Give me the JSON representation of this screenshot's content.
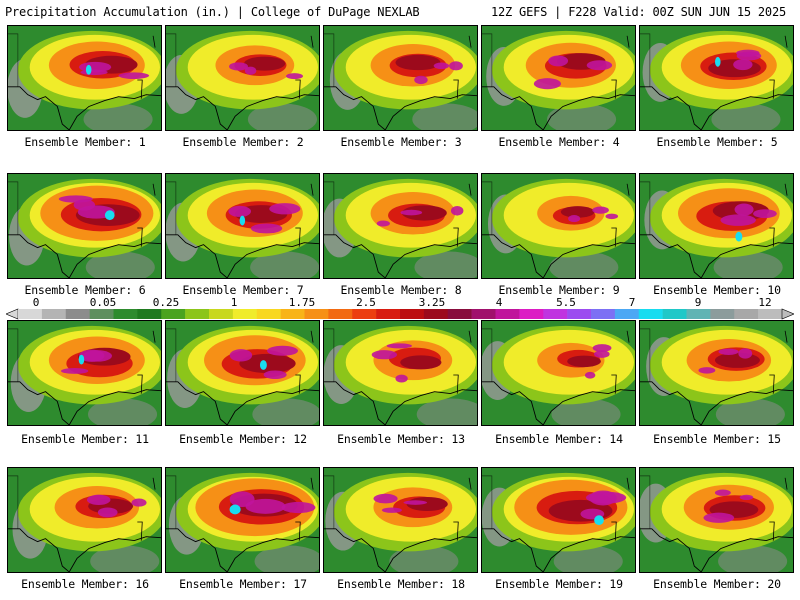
{
  "header": {
    "left": "Precipitation Accumulation (in.) | College of DuPage NEXLAB",
    "right": "12Z GEFS | F228 Valid: 00Z SUN JUN 15 2025"
  },
  "members": [
    {
      "label": "Ensemble Member: 1",
      "intensity": 0.7
    },
    {
      "label": "Ensemble Member: 2",
      "intensity": 0.55
    },
    {
      "label": "Ensemble Member: 3",
      "intensity": 0.6
    },
    {
      "label": "Ensemble Member: 4",
      "intensity": 0.65
    },
    {
      "label": "Ensemble Member: 5",
      "intensity": 0.7
    },
    {
      "label": "Ensemble Member: 6",
      "intensity": 0.85
    },
    {
      "label": "Ensemble Member: 7",
      "intensity": 0.7
    },
    {
      "label": "Ensemble Member: 8",
      "intensity": 0.6
    },
    {
      "label": "Ensemble Member: 9",
      "intensity": 0.45
    },
    {
      "label": "Ensemble Member: 10",
      "intensity": 0.75
    },
    {
      "label": "Ensemble Member: 11",
      "intensity": 0.7
    },
    {
      "label": "Ensemble Member: 12",
      "intensity": 0.75
    },
    {
      "label": "Ensemble Member: 13",
      "intensity": 0.55
    },
    {
      "label": "Ensemble Member: 14",
      "intensity": 0.45
    },
    {
      "label": "Ensemble Member: 15",
      "intensity": 0.6
    },
    {
      "label": "Ensemble Member: 16",
      "intensity": 0.6
    },
    {
      "label": "Ensemble Member: 17",
      "intensity": 0.9
    },
    {
      "label": "Ensemble Member: 18",
      "intensity": 0.55
    },
    {
      "label": "Ensemble Member: 19",
      "intensity": 0.85
    },
    {
      "label": "Ensemble Member: 20",
      "intensity": 0.65
    }
  ],
  "colorbar": {
    "ticks": [
      "0",
      "0.05",
      "0.25",
      "1",
      "1.75",
      "2.5",
      "3.25",
      "4",
      "5.5",
      "7",
      "9",
      "12"
    ],
    "colors": [
      "#d8d8d8",
      "#b4b4b4",
      "#8c8c8c",
      "#5e8f5e",
      "#2e8b2e",
      "#1f7a1f",
      "#4aa31f",
      "#8cc51a",
      "#c8d81e",
      "#f0ec2a",
      "#f8d820",
      "#f8b418",
      "#f69016",
      "#f26a12",
      "#ec3e10",
      "#d81c10",
      "#bc0e10",
      "#9c0a1c",
      "#880c3c",
      "#a0106c",
      "#c0149c",
      "#dc1cc4",
      "#c034e0",
      "#9c4cf0",
      "#7c70f4",
      "#4ca8f4",
      "#18dcf0",
      "#20c8c8",
      "#60b4b4",
      "#8c9c9c",
      "#a8a8a8",
      "#bcbcbc"
    ]
  }
}
